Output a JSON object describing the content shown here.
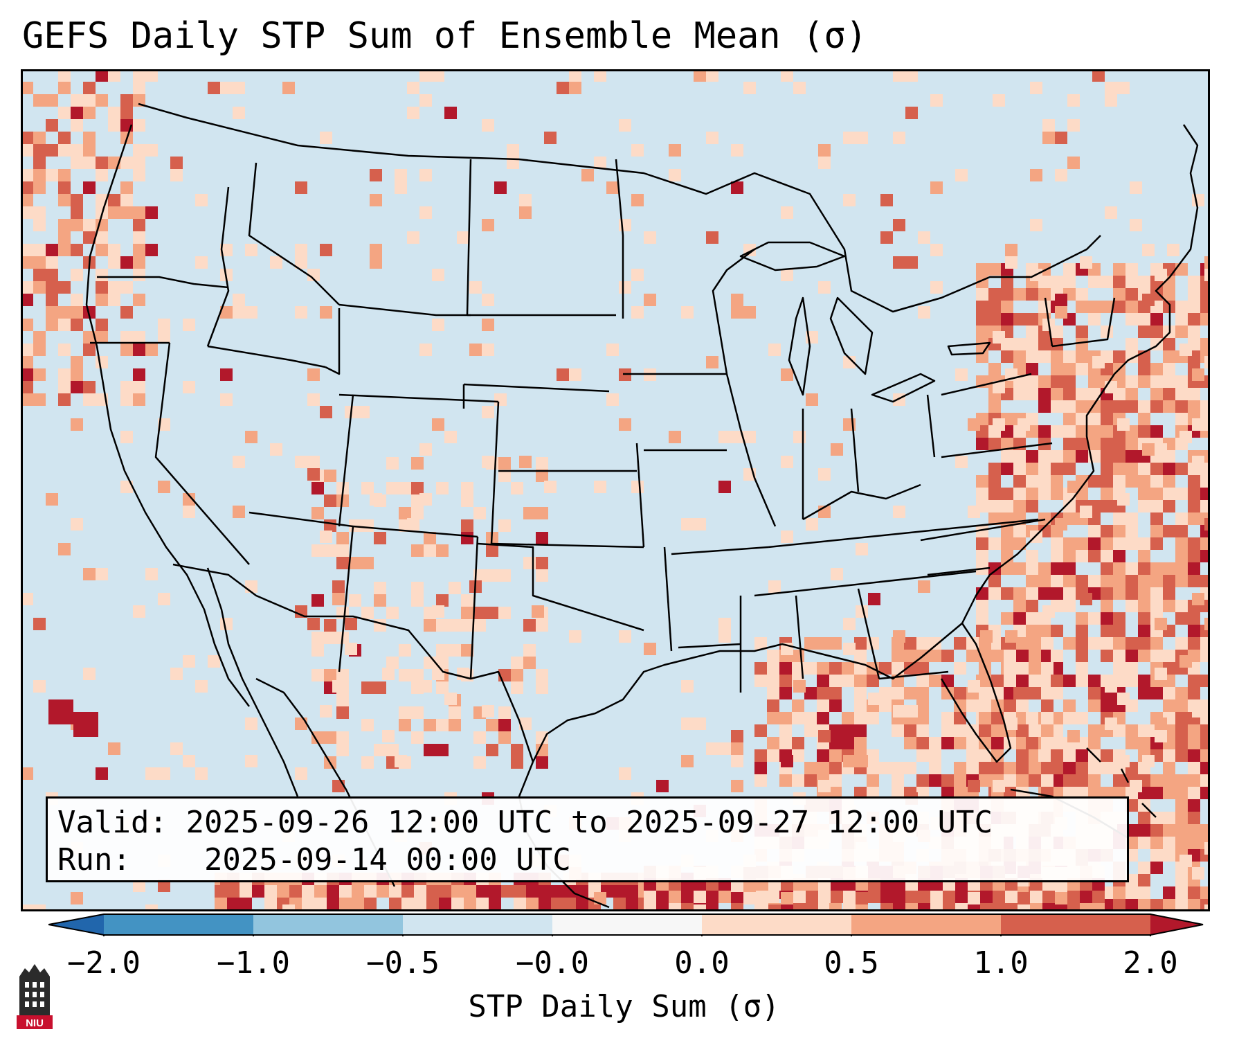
{
  "title": "GEFS Daily STP Sum of Ensemble Mean (σ)",
  "info": {
    "valid_label": "Valid:",
    "valid_value": "2025-09-26 12:00 UTC to 2025-09-27 12:00 UTC",
    "run_label": "Run:",
    "run_value": "2025-09-14 00:00 UTC"
  },
  "colorbar": {
    "label": "STP Daily Sum (σ)",
    "ticks": [
      "−2.0",
      "−1.0",
      "−0.5",
      "−0.0",
      "0.0",
      "0.5",
      "1.0",
      "2.0"
    ],
    "colors": {
      "under": "#2166ac",
      "bin_neg2_neg1": "#4393c3",
      "bin_neg1_neg05": "#92c5de",
      "bin_neg05_0": "#d1e5f0",
      "bin_zero": "#f7f7f7",
      "bin_0_05": "#fddbc7",
      "bin_05_1": "#f4a582",
      "bin_1_2": "#d6604d",
      "over": "#b2182b"
    }
  },
  "map": {
    "background_color": "#d1e5f0",
    "region": "Contiguous United States",
    "stp_field_note": "GEFS ensemble mean daily STP anomaly"
  },
  "logo": {
    "text": "NIU",
    "icon": "niu-tower-icon"
  }
}
